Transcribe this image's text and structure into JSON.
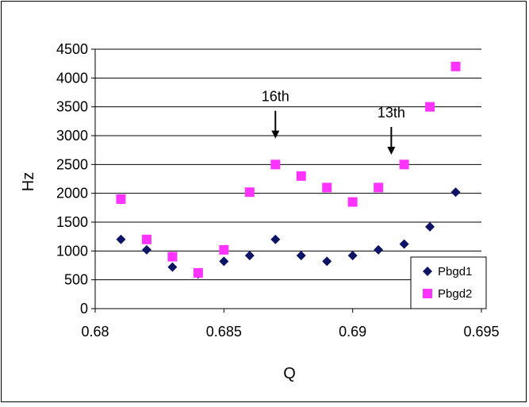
{
  "chart_data": {
    "type": "scatter",
    "title": "",
    "xlabel": "Q",
    "ylabel": "Hz",
    "xlim": [
      0.68,
      0.695
    ],
    "ylim": [
      0,
      4500
    ],
    "x_ticks": [
      "0.68",
      "0.685",
      "0.69",
      "0.695"
    ],
    "y_ticks": [
      "0",
      "500",
      "1000",
      "1500",
      "2000",
      "2500",
      "3000",
      "3500",
      "4000",
      "4500"
    ],
    "grid": "horizontal",
    "legend_position": "bottom-right",
    "series": [
      {
        "name": "Pbgd1",
        "marker": "diamond",
        "color": "#0d1466",
        "points": [
          {
            "x": 0.681,
            "y": 1200
          },
          {
            "x": 0.682,
            "y": 1020
          },
          {
            "x": 0.683,
            "y": 720
          },
          {
            "x": 0.684,
            "y": 600
          },
          {
            "x": 0.685,
            "y": 820
          },
          {
            "x": 0.686,
            "y": 920
          },
          {
            "x": 0.687,
            "y": 1200
          },
          {
            "x": 0.688,
            "y": 920
          },
          {
            "x": 0.689,
            "y": 820
          },
          {
            "x": 0.69,
            "y": 920
          },
          {
            "x": 0.691,
            "y": 1020
          },
          {
            "x": 0.692,
            "y": 1120
          },
          {
            "x": 0.693,
            "y": 1420
          },
          {
            "x": 0.694,
            "y": 2020
          }
        ]
      },
      {
        "name": "Pbgd2",
        "marker": "square",
        "color": "#ff33ff",
        "points": [
          {
            "x": 0.681,
            "y": 1900
          },
          {
            "x": 0.682,
            "y": 1200
          },
          {
            "x": 0.683,
            "y": 900
          },
          {
            "x": 0.684,
            "y": 620
          },
          {
            "x": 0.685,
            "y": 1020
          },
          {
            "x": 0.686,
            "y": 2020
          },
          {
            "x": 0.687,
            "y": 2500
          },
          {
            "x": 0.688,
            "y": 2300
          },
          {
            "x": 0.689,
            "y": 2100
          },
          {
            "x": 0.69,
            "y": 1850
          },
          {
            "x": 0.691,
            "y": 2100
          },
          {
            "x": 0.692,
            "y": 2500
          },
          {
            "x": 0.693,
            "y": 3500
          },
          {
            "x": 0.694,
            "y": 4200
          }
        ]
      }
    ],
    "annotations": [
      {
        "text": "16th",
        "x": 0.687,
        "y": 2950
      },
      {
        "text": "13th",
        "x": 0.6915,
        "y": 2670
      }
    ]
  }
}
